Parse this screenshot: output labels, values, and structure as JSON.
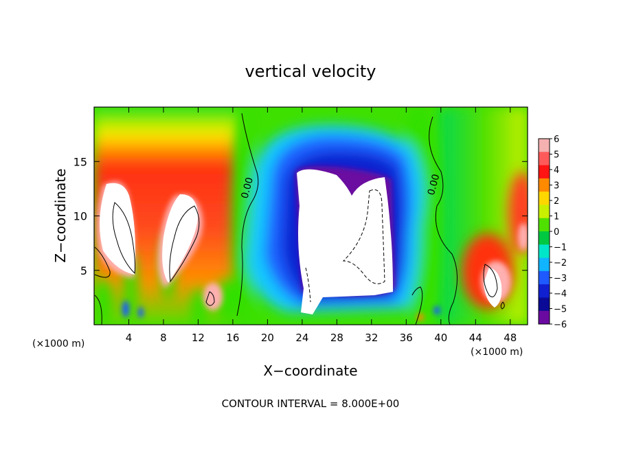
{
  "chart_data": {
    "type": "heatmap",
    "title": "vertical velocity",
    "xlabel": "X−coordinate",
    "ylabel": "Z−coordinate",
    "x_unit_left": "(×1000 m)",
    "x_unit_right": "(×1000 m)",
    "footer": "CONTOUR INTERVAL = 8.000E+00",
    "xlim": [
      0,
      50
    ],
    "ylim": [
      0,
      20
    ],
    "x_ticks": [
      {
        "value": 4,
        "label": "4"
      },
      {
        "value": 8,
        "label": "8"
      },
      {
        "value": 12,
        "label": "12"
      },
      {
        "value": 16,
        "label": "16"
      },
      {
        "value": 20,
        "label": "20"
      },
      {
        "value": 24,
        "label": "24"
      },
      {
        "value": 28,
        "label": "28"
      },
      {
        "value": 32,
        "label": "32"
      },
      {
        "value": 36,
        "label": "36"
      },
      {
        "value": 40,
        "label": "40"
      },
      {
        "value": 44,
        "label": "44"
      },
      {
        "value": 48,
        "label": "48"
      }
    ],
    "y_ticks": [
      {
        "value": 5,
        "label": "5"
      },
      {
        "value": 10,
        "label": "10"
      },
      {
        "value": 15,
        "label": "15"
      }
    ],
    "colorbar": {
      "min": -6,
      "max": 6,
      "labels": [
        "6",
        "5",
        "4",
        "3",
        "2",
        "1",
        "0",
        "−1",
        "−2",
        "−3",
        "−4",
        "−5",
        "−6"
      ],
      "colors": [
        "#f5b0b0",
        "#ff5a5a",
        "#ff1414",
        "#ff8a00",
        "#ffd700",
        "#c8f000",
        "#50e000",
        "#00c840",
        "#00e6c8",
        "#10b4ff",
        "#1e5aff",
        "#1020d0",
        "#0a0a96",
        "#6a0aa0"
      ]
    },
    "contour_labels": [
      {
        "x": 18.0,
        "y": 12.5,
        "label": "0.00"
      },
      {
        "x": 39.5,
        "y": 12.8,
        "label": "0.00"
      }
    ],
    "features": [
      {
        "kind": "updraft",
        "x": 1.5,
        "z": 8,
        "max": 6
      },
      {
        "kind": "updraft",
        "x": 5,
        "z": 9,
        "max": 6
      },
      {
        "kind": "updraft",
        "x": 10.5,
        "z": 9,
        "max": 6
      },
      {
        "kind": "updraft",
        "x": 13.5,
        "z": 3,
        "max": 6
      },
      {
        "kind": "downdraft",
        "x": 29,
        "z": 8,
        "min": -6
      },
      {
        "kind": "updraft",
        "x": 45.5,
        "z": 4,
        "max": 6
      },
      {
        "kind": "updraft",
        "x": 49.5,
        "z": 8,
        "max": 5
      }
    ]
  }
}
